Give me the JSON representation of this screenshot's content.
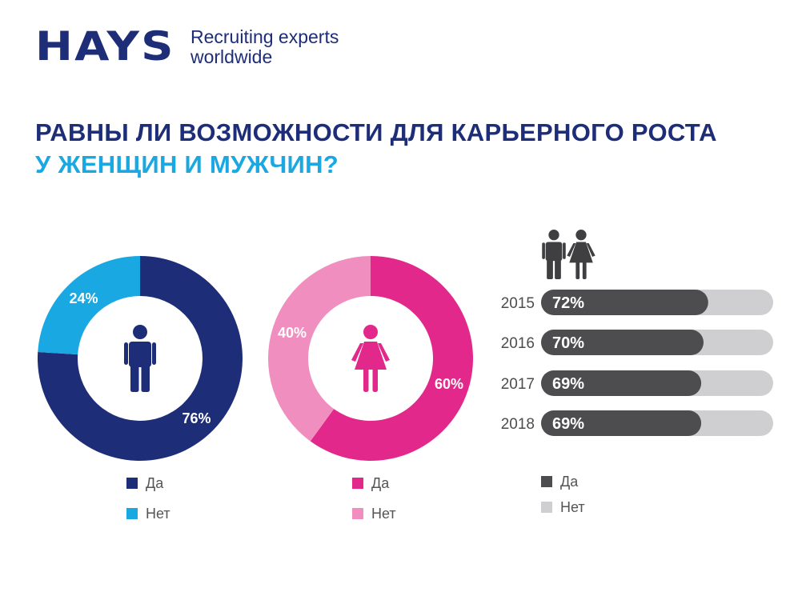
{
  "logo": {
    "wordmark": "HAYS",
    "tagline": [
      "Recruiting experts",
      "worldwide"
    ]
  },
  "title": {
    "line1": "РАВНЫ ЛИ ВОЗМОЖНОСТИ ДЛЯ КАРЬЕРНОГО РОСТА",
    "line2": "У ЖЕНЩИН И МУЖЧИН?"
  },
  "colors": {
    "navy": "#1d2d78",
    "cyan": "#1aa8e2",
    "magenta": "#e2288a",
    "pink": "#f08fbf",
    "bar_dark": "#4d4d4f",
    "bar_light": "#cfcfd1"
  },
  "chart_data": [
    {
      "type": "pie",
      "icon": "male-icon",
      "categories": [
        "Да",
        "Нет"
      ],
      "values": [
        76,
        24
      ],
      "data_labels": [
        "76%",
        "24%"
      ],
      "colors": [
        "#1d2d78",
        "#1aa8e2"
      ],
      "legend": [
        "Да",
        "Нет"
      ]
    },
    {
      "type": "pie",
      "icon": "female-icon",
      "categories": [
        "Да",
        "Нет"
      ],
      "values": [
        60,
        40
      ],
      "data_labels": [
        "60%",
        "40%"
      ],
      "colors": [
        "#e2288a",
        "#f08fbf"
      ],
      "legend": [
        "Да",
        "Нет"
      ]
    },
    {
      "type": "bar",
      "orientation": "horizontal",
      "icons": [
        "male-icon",
        "female-icon"
      ],
      "categories": [
        "2015",
        "2016",
        "2017",
        "2018"
      ],
      "values": [
        72,
        70,
        69,
        69
      ],
      "data_labels": [
        "72%",
        "70%",
        "69%",
        "69%"
      ],
      "xlim": [
        0,
        100
      ],
      "colors": [
        "#4d4d4f",
        "#cfcfd1"
      ],
      "legend": [
        "Да",
        "Нет"
      ]
    }
  ]
}
